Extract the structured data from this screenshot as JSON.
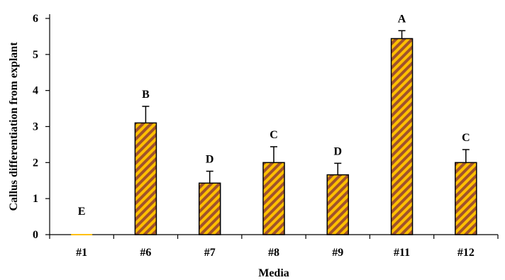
{
  "chart_data": {
    "type": "bar",
    "xlabel": "Media",
    "ylabel": "Callus differentiation from explant",
    "ylim": [
      0,
      6
    ],
    "yticks": [
      0,
      1,
      2,
      3,
      4,
      5,
      6
    ],
    "categories": [
      "#1",
      "#6",
      "#7",
      "#8",
      "#9",
      "#11",
      "#12"
    ],
    "values": [
      0,
      3.1,
      1.43,
      2.0,
      1.66,
      5.44,
      2.0
    ],
    "errors": [
      0,
      0.46,
      0.33,
      0.44,
      0.32,
      0.22,
      0.36
    ],
    "significance_letters": [
      "E",
      "B",
      "D",
      "C",
      "D",
      "A",
      "C"
    ],
    "grid": false,
    "legend": "none",
    "bar_fill_pattern": "diagonal-stripes",
    "colors": {
      "bar_base": "#ffc000",
      "bar_stripe": "#a0522d",
      "bar_outline": "#000000",
      "axis": "#000000",
      "text": "#000000"
    }
  }
}
